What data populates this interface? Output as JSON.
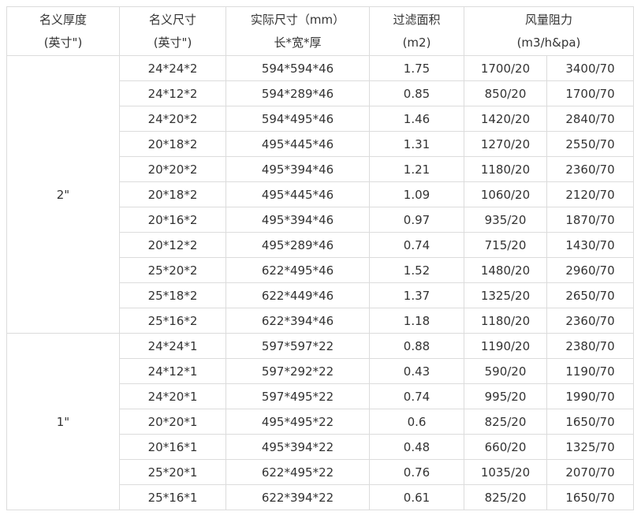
{
  "page": {
    "background_color": "#ffffff",
    "text_color": "#333333",
    "border_color": "#dcdcdc"
  },
  "table": {
    "header": {
      "col_thickness": {
        "line1": "名义厚度",
        "line2": "(英寸\")"
      },
      "col_nominal": {
        "line1": "名义尺寸",
        "line2": "(英寸\")"
      },
      "col_actual": {
        "line1": "实际尺寸（mm）",
        "line2": "长*宽*厚"
      },
      "col_area": {
        "line1": "过滤面积",
        "line2": "(m2)"
      },
      "col_airflow": {
        "line1": "风量阻力",
        "line2": "(m3/h&pa)"
      }
    },
    "groups": [
      {
        "thickness": "2\"",
        "rows": [
          {
            "nominal": "24*24*2",
            "actual": "594*594*46",
            "area": "1.75",
            "airflow_20": "1700/20",
            "airflow_70": "3400/70"
          },
          {
            "nominal": "24*12*2",
            "actual": "594*289*46",
            "area": "0.85",
            "airflow_20": "850/20",
            "airflow_70": "1700/70"
          },
          {
            "nominal": "24*20*2",
            "actual": "594*495*46",
            "area": "1.46",
            "airflow_20": "1420/20",
            "airflow_70": "2840/70"
          },
          {
            "nominal": "20*18*2",
            "actual": "495*445*46",
            "area": "1.31",
            "airflow_20": "1270/20",
            "airflow_70": "2550/70"
          },
          {
            "nominal": "20*20*2",
            "actual": "495*394*46",
            "area": "1.21",
            "airflow_20": "1180/20",
            "airflow_70": "2360/70"
          },
          {
            "nominal": "20*18*2",
            "actual": "495*445*46",
            "area": "1.09",
            "airflow_20": "1060/20",
            "airflow_70": "2120/70"
          },
          {
            "nominal": "20*16*2",
            "actual": "495*394*46",
            "area": "0.97",
            "airflow_20": "935/20",
            "airflow_70": "1870/70"
          },
          {
            "nominal": "20*12*2",
            "actual": "495*289*46",
            "area": "0.74",
            "airflow_20": "715/20",
            "airflow_70": "1430/70"
          },
          {
            "nominal": "25*20*2",
            "actual": "622*495*46",
            "area": "1.52",
            "airflow_20": "1480/20",
            "airflow_70": "2960/70"
          },
          {
            "nominal": "25*18*2",
            "actual": "622*449*46",
            "area": "1.37",
            "airflow_20": "1325/20",
            "airflow_70": "2650/70"
          },
          {
            "nominal": "25*16*2",
            "actual": "622*394*46",
            "area": "1.18",
            "airflow_20": "1180/20",
            "airflow_70": "2360/70"
          }
        ]
      },
      {
        "thickness": "1\"",
        "rows": [
          {
            "nominal": "24*24*1",
            "actual": "597*597*22",
            "area": "0.88",
            "airflow_20": "1190/20",
            "airflow_70": "2380/70"
          },
          {
            "nominal": "24*12*1",
            "actual": "597*292*22",
            "area": "0.43",
            "airflow_20": "590/20",
            "airflow_70": "1190/70"
          },
          {
            "nominal": "24*20*1",
            "actual": "597*495*22",
            "area": "0.74",
            "airflow_20": "995/20",
            "airflow_70": "1990/70"
          },
          {
            "nominal": "20*20*1",
            "actual": "495*495*22",
            "area": "0.6",
            "airflow_20": "825/20",
            "airflow_70": "1650/70"
          },
          {
            "nominal": "20*16*1",
            "actual": "495*394*22",
            "area": "0.48",
            "airflow_20": "660/20",
            "airflow_70": "1325/70"
          },
          {
            "nominal": "25*20*1",
            "actual": "622*495*22",
            "area": "0.76",
            "airflow_20": "1035/20",
            "airflow_70": "2070/70"
          },
          {
            "nominal": "25*16*1",
            "actual": "622*394*22",
            "area": "0.61",
            "airflow_20": "825/20",
            "airflow_70": "1650/70"
          }
        ]
      }
    ]
  }
}
